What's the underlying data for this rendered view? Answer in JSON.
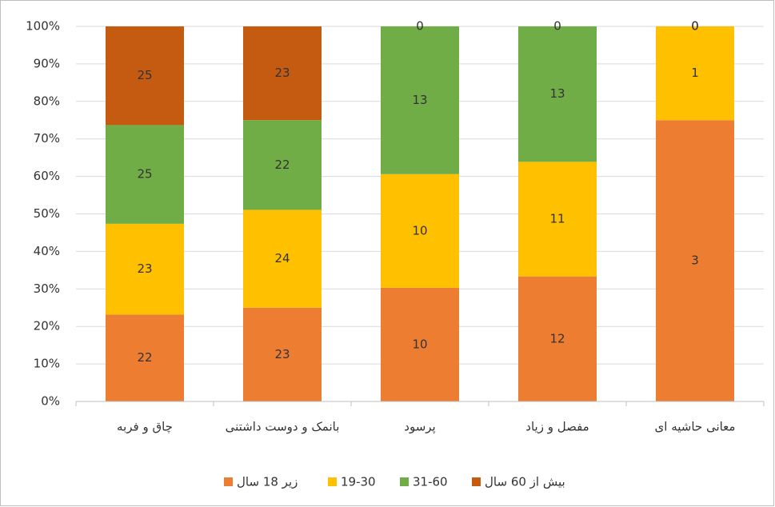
{
  "chart_data": {
    "type": "bar",
    "stacking": "percent",
    "categories": [
      "چاق و فربه",
      "بانمک و دوست داشتنی",
      "پرسود",
      "مفصل و زیاد",
      "معانی حاشیه ای"
    ],
    "series": [
      {
        "name": "زیر 18 سال",
        "color": "#ed7d31",
        "values": [
          22,
          23,
          10,
          12,
          3
        ]
      },
      {
        "name": "19-30",
        "color": "#ffc000",
        "values": [
          23,
          24,
          10,
          11,
          1
        ]
      },
      {
        "name": "31-60",
        "color": "#70ad47",
        "values": [
          25,
          22,
          13,
          13,
          0
        ]
      },
      {
        "name": "بیش از 60 سال",
        "color": "#c55a11",
        "values": [
          25,
          23,
          0,
          0,
          0
        ]
      }
    ],
    "ylim": [
      0,
      100
    ],
    "yticks": [
      {
        "value": 0,
        "label": "0%"
      },
      {
        "value": 10,
        "label": "10%"
      },
      {
        "value": 20,
        "label": "20%"
      },
      {
        "value": 30,
        "label": "30%"
      },
      {
        "value": 40,
        "label": "40%"
      },
      {
        "value": 50,
        "label": "50%"
      },
      {
        "value": 60,
        "label": "60%"
      },
      {
        "value": 70,
        "label": "70%"
      },
      {
        "value": 80,
        "label": "80%"
      },
      {
        "value": 90,
        "label": "90%"
      },
      {
        "value": 100,
        "label": "100%"
      }
    ],
    "grid": true,
    "legend": "bottom"
  }
}
